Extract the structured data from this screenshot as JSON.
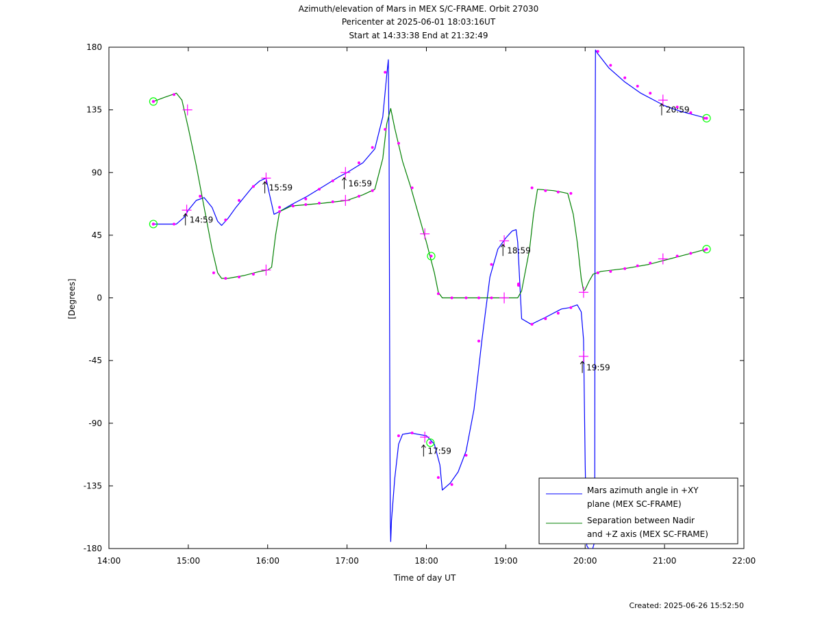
{
  "chart_data": {
    "type": "line",
    "title_lines": [
      "Azimuth/elevation of Mars in MEX S/C-FRAME.  Orbit 27030",
      "Pericenter at 2025-06-01 18:03:16UT",
      "Start at 14:33:38 End at 21:32:49"
    ],
    "xlabel": "Time of day UT",
    "ylabel": "[Degrees]",
    "footer": "Created: 2025-06-26 15:52:50",
    "x_unit": "hours of day (UT)",
    "xlim": [
      14,
      22
    ],
    "ylim": [
      -180,
      180
    ],
    "xtick_labels": [
      "14:00",
      "15:00",
      "16:00",
      "17:00",
      "18:00",
      "19:00",
      "20:00",
      "21:00",
      "22:00"
    ],
    "ytick_labels": [
      "180",
      "135",
      "90",
      "45",
      "0",
      "-45",
      "-90",
      "-135",
      "-180"
    ],
    "grid": false,
    "legend_position": "bottom-right",
    "series": [
      {
        "name": "Mars azimuth angle in +XY plane (MEX SC-FRAME)",
        "legend_lines": [
          "Mars azimuth angle in +XY",
          "plane (MEX SC-FRAME)"
        ],
        "color": "#0000ff",
        "x": [
          14.56,
          14.85,
          14.95,
          15.0,
          15.1,
          15.2,
          15.3,
          15.37,
          15.42,
          15.5,
          15.6,
          15.7,
          15.8,
          15.9,
          15.98,
          16.02,
          16.08,
          16.15,
          16.3,
          16.5,
          16.7,
          16.9,
          17.0,
          17.2,
          17.35,
          17.45,
          17.5,
          17.52,
          17.53,
          17.54,
          17.545,
          17.55,
          17.56,
          17.6,
          17.65,
          17.7,
          17.8,
          18.0,
          18.1,
          18.17,
          18.2,
          18.3,
          18.4,
          18.5,
          18.6,
          18.7,
          18.8,
          18.9,
          19.0,
          19.08,
          19.13,
          19.15,
          19.2,
          19.32,
          19.5,
          19.7,
          19.8,
          19.9,
          19.95,
          19.98,
          20.0,
          20.02,
          20.08,
          20.12,
          20.125,
          20.13,
          20.15,
          20.3,
          20.5,
          20.7,
          20.9,
          21.0,
          21.2,
          21.4,
          21.53
        ],
        "y": [
          53,
          53,
          58,
          63,
          70,
          72,
          65,
          55,
          52,
          57,
          65,
          72,
          79,
          84,
          86,
          75,
          60,
          62,
          67,
          73,
          80,
          87,
          90,
          97,
          107,
          130,
          160,
          171,
          110,
          -95,
          -160,
          -175,
          -160,
          -130,
          -105,
          -98,
          -97,
          -99,
          -105,
          -120,
          -138,
          -133,
          -125,
          -110,
          -80,
          -30,
          15,
          35,
          43,
          48,
          49,
          40,
          -15,
          -19,
          -14,
          -8,
          -7,
          -5,
          -10,
          -30,
          -120,
          -178,
          -183,
          -175,
          90,
          178,
          176,
          165,
          155,
          147,
          141,
          138,
          134,
          131,
          129
        ]
      },
      {
        "name": "Separation between Nadir and +Z axis (MEX SC-FRAME)",
        "legend_lines": [
          "Separation between Nadir",
          "and +Z axis (MEX SC-FRAME)"
        ],
        "color": "#008000",
        "x": [
          14.56,
          14.7,
          14.85,
          14.92,
          15.0,
          15.1,
          15.2,
          15.3,
          15.37,
          15.42,
          15.5,
          15.7,
          15.9,
          16.0,
          16.05,
          16.1,
          16.15,
          16.3,
          16.5,
          16.7,
          17.0,
          17.2,
          17.35,
          17.45,
          17.5,
          17.55,
          17.6,
          17.7,
          17.8,
          17.9,
          18.0,
          18.1,
          18.15,
          18.2,
          18.4,
          18.6,
          18.8,
          18.9,
          19.0,
          19.1,
          19.15,
          19.2,
          19.3,
          19.35,
          19.4,
          19.6,
          19.7,
          19.78,
          19.85,
          19.9,
          19.95,
          19.98,
          20.0,
          20.05,
          20.1,
          20.2,
          20.5,
          20.8,
          21.0,
          21.2,
          21.53
        ],
        "y": [
          141,
          144,
          147,
          142,
          122,
          95,
          65,
          35,
          18,
          14,
          14,
          16,
          19,
          20,
          22,
          45,
          62,
          66,
          67,
          68,
          70,
          74,
          78,
          100,
          125,
          136,
          122,
          98,
          80,
          60,
          40,
          18,
          4,
          0,
          0,
          0,
          0,
          0,
          0,
          0,
          0,
          5,
          35,
          60,
          78,
          77,
          76,
          75,
          60,
          40,
          14,
          5,
          6,
          12,
          17,
          19,
          21,
          24,
          27,
          30,
          35
        ]
      }
    ],
    "markers": {
      "dot_color": "#ff00ff",
      "start_end_circle_color": "#00ff00",
      "circles": [
        {
          "x": 14.56,
          "y": 53
        },
        {
          "x": 14.56,
          "y": 141
        },
        {
          "x": 18.06,
          "y": 30
        },
        {
          "x": 18.05,
          "y": -104
        },
        {
          "x": 21.53,
          "y": 129
        },
        {
          "x": 21.53,
          "y": 35
        }
      ],
      "hour_crosses": [
        {
          "x": 14.99,
          "y": 135
        },
        {
          "x": 14.98,
          "y": 63
        },
        {
          "x": 15.98,
          "y": 86
        },
        {
          "x": 15.98,
          "y": 20
        },
        {
          "x": 16.98,
          "y": 90
        },
        {
          "x": 16.98,
          "y": 70
        },
        {
          "x": 17.98,
          "y": 46
        },
        {
          "x": 17.98,
          "y": -100
        },
        {
          "x": 18.98,
          "y": 41
        },
        {
          "x": 18.98,
          "y": 0
        },
        {
          "x": 19.98,
          "y": -42
        },
        {
          "x": 19.98,
          "y": 4
        },
        {
          "x": 20.98,
          "y": 142
        },
        {
          "x": 20.98,
          "y": 28
        }
      ],
      "dots": [
        {
          "x": 14.56,
          "y": 53
        },
        {
          "x": 14.82,
          "y": 53
        },
        {
          "x": 15.15,
          "y": 73
        },
        {
          "x": 15.47,
          "y": 56
        },
        {
          "x": 15.64,
          "y": 70
        },
        {
          "x": 15.82,
          "y": 80
        },
        {
          "x": 16.15,
          "y": 62
        },
        {
          "x": 16.32,
          "y": 66
        },
        {
          "x": 16.48,
          "y": 71
        },
        {
          "x": 16.65,
          "y": 78
        },
        {
          "x": 16.82,
          "y": 84
        },
        {
          "x": 17.15,
          "y": 97
        },
        {
          "x": 17.32,
          "y": 108
        },
        {
          "x": 17.48,
          "y": 162
        },
        {
          "x": 17.65,
          "y": -99
        },
        {
          "x": 17.82,
          "y": -97
        },
        {
          "x": 18.15,
          "y": -129
        },
        {
          "x": 18.32,
          "y": -134
        },
        {
          "x": 18.5,
          "y": -113
        },
        {
          "x": 18.66,
          "y": -31
        },
        {
          "x": 18.82,
          "y": 24
        },
        {
          "x": 19.16,
          "y": 10
        },
        {
          "x": 19.33,
          "y": -19
        },
        {
          "x": 19.5,
          "y": -15
        },
        {
          "x": 19.66,
          "y": -11
        },
        {
          "x": 19.82,
          "y": -7
        },
        {
          "x": 20.16,
          "y": 177
        },
        {
          "x": 20.32,
          "y": 167
        },
        {
          "x": 20.5,
          "y": 158
        },
        {
          "x": 20.66,
          "y": 152
        },
        {
          "x": 20.82,
          "y": 147
        },
        {
          "x": 21.16,
          "y": 137
        },
        {
          "x": 21.33,
          "y": 133
        },
        {
          "x": 21.5,
          "y": 129
        },
        {
          "x": 14.56,
          "y": 141
        },
        {
          "x": 14.82,
          "y": 146
        },
        {
          "x": 15.15,
          "y": 73
        },
        {
          "x": 15.32,
          "y": 18
        },
        {
          "x": 15.47,
          "y": 14
        },
        {
          "x": 15.64,
          "y": 15
        },
        {
          "x": 15.82,
          "y": 17
        },
        {
          "x": 16.15,
          "y": 65
        },
        {
          "x": 16.32,
          "y": 66
        },
        {
          "x": 16.48,
          "y": 67
        },
        {
          "x": 16.65,
          "y": 68
        },
        {
          "x": 16.82,
          "y": 69
        },
        {
          "x": 17.15,
          "y": 73
        },
        {
          "x": 17.32,
          "y": 77
        },
        {
          "x": 17.48,
          "y": 121
        },
        {
          "x": 17.65,
          "y": 111
        },
        {
          "x": 17.82,
          "y": 79
        },
        {
          "x": 18.15,
          "y": 3
        },
        {
          "x": 18.32,
          "y": 0
        },
        {
          "x": 18.5,
          "y": 0
        },
        {
          "x": 18.66,
          "y": 0
        },
        {
          "x": 18.82,
          "y": 0
        },
        {
          "x": 19.16,
          "y": 9
        },
        {
          "x": 19.33,
          "y": 79
        },
        {
          "x": 19.5,
          "y": 77
        },
        {
          "x": 19.66,
          "y": 76
        },
        {
          "x": 19.82,
          "y": 75
        },
        {
          "x": 20.16,
          "y": 18
        },
        {
          "x": 20.32,
          "y": 19
        },
        {
          "x": 20.5,
          "y": 21
        },
        {
          "x": 20.66,
          "y": 23
        },
        {
          "x": 20.82,
          "y": 25
        },
        {
          "x": 21.16,
          "y": 30
        },
        {
          "x": 21.33,
          "y": 32
        },
        {
          "x": 21.5,
          "y": 34
        }
      ]
    },
    "annotations": [
      {
        "text": "14:59",
        "x": 14.99,
        "y": 56
      },
      {
        "text": "15:59",
        "x": 15.99,
        "y": 79
      },
      {
        "text": "16:59",
        "x": 16.99,
        "y": 82
      },
      {
        "text": "17:59",
        "x": 17.99,
        "y": -110
      },
      {
        "text": "18:59",
        "x": 18.99,
        "y": 34
      },
      {
        "text": "19:59",
        "x": 19.99,
        "y": -50
      },
      {
        "text": "20:59",
        "x": 20.99,
        "y": 135
      }
    ]
  }
}
